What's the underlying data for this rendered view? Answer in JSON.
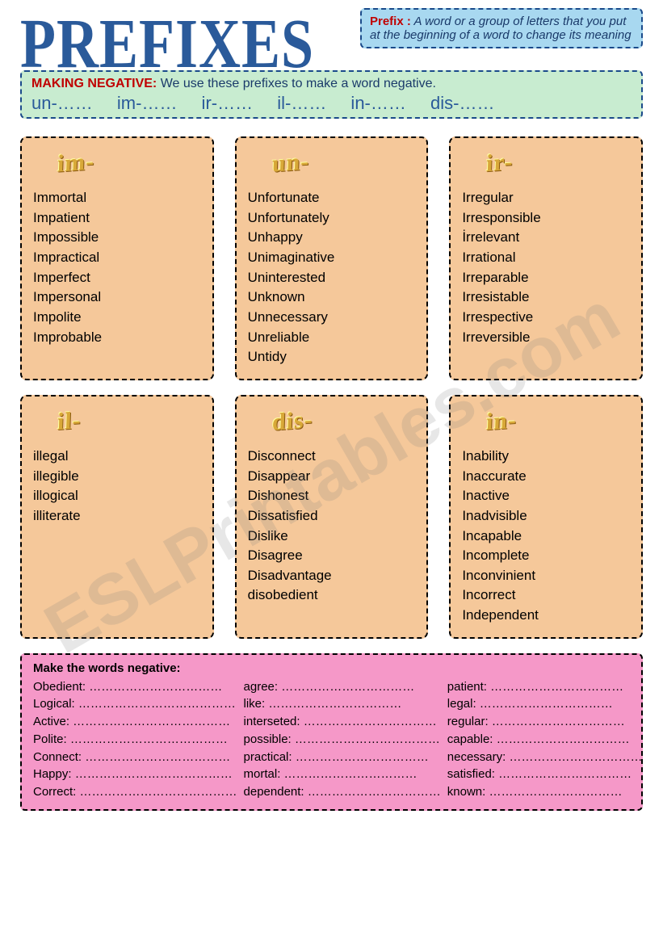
{
  "title": "PREFIXES",
  "definition": {
    "label": "Prefix :",
    "text": " A word or a group of letters that you put at the beginning of a word to change its meaning"
  },
  "negative": {
    "label": "MAKING NEGATIVE:",
    "text": " We use  these prefixes to make a word negative.",
    "list": "un-……    im-……    ir-……    il-……    in-……    dis-……"
  },
  "cards": [
    {
      "prefix": "im-",
      "words": [
        "Immortal",
        "Impatient",
        "Impossible",
        "Impractical",
        "Imperfect",
        "Impersonal",
        "Impolite",
        "Improbable"
      ]
    },
    {
      "prefix": "un-",
      "words": [
        "Unfortunate",
        "Unfortunately",
        "Unhappy",
        "Unimaginative",
        "Uninterested",
        "Unknown",
        "Unnecessary",
        "Unreliable",
        "Untidy"
      ]
    },
    {
      "prefix": "ir-",
      "words": [
        "Irregular",
        "Irresponsible",
        "İrrelevant",
        "Irrational",
        "Irreparable",
        "Irresistable",
        "Irrespective",
        "Irreversible"
      ]
    },
    {
      "prefix": "il-",
      "words": [
        "illegal",
        "illegible",
        "illogical",
        "illiterate"
      ]
    },
    {
      "prefix": "dis-",
      "words": [
        "Disconnect",
        "Disappear",
        "Dishonest",
        "Dissatisfied",
        "Dislike",
        "Disagree",
        "Disadvantage",
        "disobedient"
      ]
    },
    {
      "prefix": "in-",
      "words": [
        "Inability",
        "Inaccurate",
        "Inactive",
        "Inadvisible",
        "Incapable",
        "Incomplete",
        "Inconvinient",
        "Incorrect",
        "Independent"
      ]
    }
  ],
  "exercise": {
    "title": "Make the words negative:",
    "col1": [
      "Obedient: ……………………………",
      "Logical: …………………………………",
      "Active: …………………………………",
      "Polite: …………………………………",
      "Connect: ………………………………",
      "Happy: …………………………………",
      "Correct: …………………………………"
    ],
    "col2": [
      "agree: ……………………………",
      " like: ……………………………",
      " interseted: ……………………………",
      "  possible: ………………………………",
      "  practical: ……………………………",
      "  mortal: ……………………………",
      "  dependent: ……………………………"
    ],
    "col3": [
      " patient: ……………………………",
      " legal: ……………………………",
      " regular: ……………………………",
      " capable: ……………………………",
      " necessary: ……………………………",
      " satisfied: ……………………………",
      " known: ……………………………"
    ]
  },
  "watermark": "ESLPrintables.com",
  "colors": {
    "title": "#2a5a9a",
    "def_bg": "#a8d8f0",
    "neg_bg": "#c8ecd0",
    "card_bg": "#f5c89a",
    "exercise_bg": "#f598c8",
    "dash_border": "#1a4a8a",
    "red_label": "#c00000"
  }
}
